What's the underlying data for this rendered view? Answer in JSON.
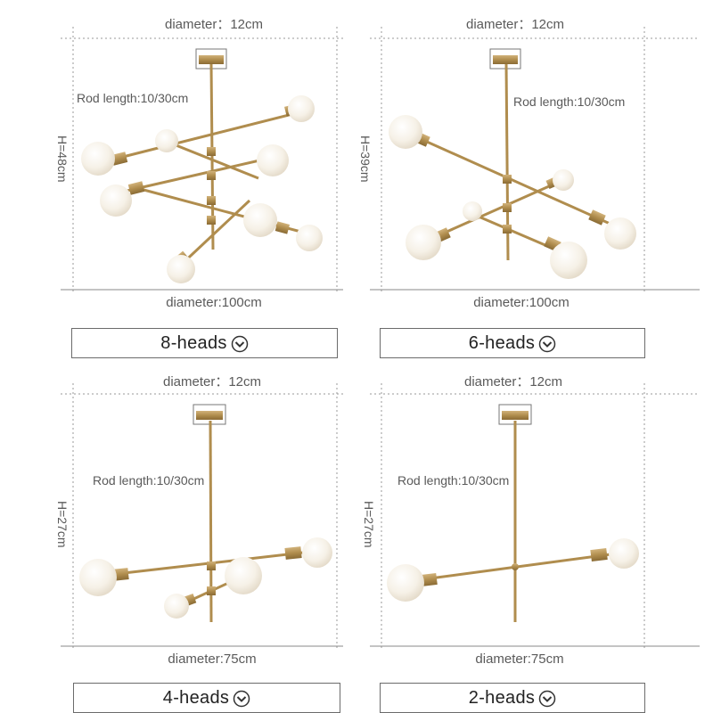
{
  "colors": {
    "gold": "#b08d4e",
    "bulb": "#f3ede2",
    "line": "#8f8f8f"
  },
  "panels": [
    {
      "top_dim": "diameter：12cm",
      "rod": "Rod length:10/30cm",
      "height": "H=48cm",
      "bottom_dim": "diameter:100cm",
      "button": "8-heads",
      "icon": "chevron-down-circle-icon"
    },
    {
      "top_dim": "diameter：12cm",
      "rod": "Rod length:10/30cm",
      "height": "H=39cm",
      "bottom_dim": "diameter:100cm",
      "button": "6-heads",
      "icon": "chevron-down-circle-icon"
    },
    {
      "top_dim": "diameter：12cm",
      "rod": "Rod length:10/30cm",
      "height": "H=27cm",
      "bottom_dim": "diameter:75cm",
      "button": "4-heads",
      "icon": "chevron-down-circle-icon"
    },
    {
      "top_dim": "diameter：12cm",
      "rod": "Rod length:10/30cm",
      "height": "H=27cm",
      "bottom_dim": "diameter:75cm",
      "button": "2-heads",
      "icon": "chevron-down-circle-icon"
    }
  ]
}
